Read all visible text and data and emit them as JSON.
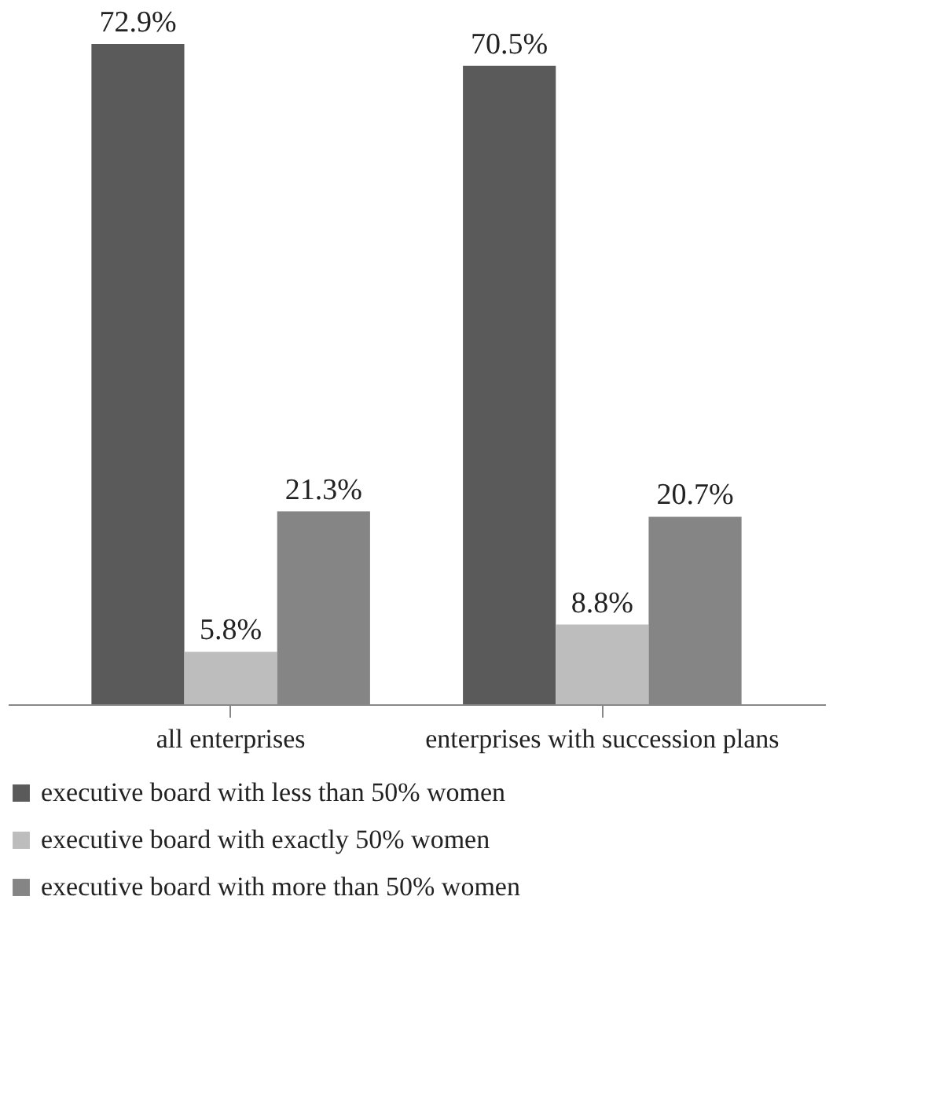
{
  "chart_data": {
    "type": "bar",
    "categories": [
      "all enterprises",
      "enterprises with succession plans"
    ],
    "series": [
      {
        "name": "executive board with less than 50% women",
        "color": "#5a5a5a",
        "values": [
          72.9,
          70.5
        ],
        "value_labels": [
          "72.9%",
          "70.5%"
        ]
      },
      {
        "name": "executive board with exactly 50% women",
        "color": "#bdbdbd",
        "values": [
          5.8,
          8.8
        ],
        "value_labels": [
          "5.8%",
          "8.8%"
        ]
      },
      {
        "name": "executive board with more than 50% women",
        "color": "#858585",
        "values": [
          21.3,
          20.7
        ],
        "value_labels": [
          "21.3%",
          "20.7%"
        ]
      }
    ],
    "legend": "bottom",
    "grid": false
  }
}
